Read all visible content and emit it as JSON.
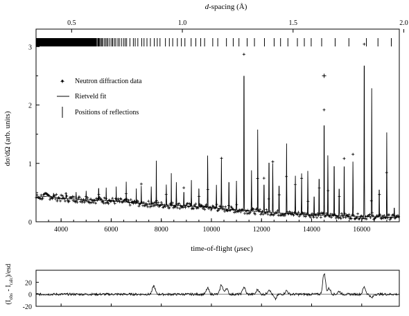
{
  "chart_data": [
    {
      "type": "scatter",
      "title": "",
      "xlabel": "time-of-flight (μsec)",
      "ylabel": "dσ/dΩ (arb. units)",
      "top_axis_label": "d-spacing (Å)",
      "top_axis_ticks": [
        "0.5",
        "1.0",
        "1.5",
        "2.0"
      ],
      "top_axis_tick_tof": [
        4420,
        8840,
        13260,
        17680
      ],
      "xlim": [
        3000,
        17500
      ],
      "ylim": [
        0,
        3.3
      ],
      "x_ticks": [
        "4000",
        "6000",
        "8000",
        "10000",
        "12000",
        "14000",
        "16000"
      ],
      "y_ticks": [
        "0",
        "1",
        "2",
        "3"
      ],
      "legend_position": "upper-left",
      "series": [
        {
          "name": "Neutron diffraction data",
          "style": "points"
        },
        {
          "name": "Rietveld fit",
          "style": "line"
        },
        {
          "name": "Positions of reflections",
          "style": "ticks"
        }
      ],
      "baseline_points": [
        [
          3000,
          0.42
        ],
        [
          3500,
          0.44
        ],
        [
          4000,
          0.4
        ],
        [
          5000,
          0.38
        ],
        [
          6000,
          0.36
        ],
        [
          7000,
          0.32
        ],
        [
          8000,
          0.29
        ],
        [
          9000,
          0.27
        ],
        [
          10000,
          0.24
        ],
        [
          11000,
          0.2
        ],
        [
          12000,
          0.17
        ],
        [
          13000,
          0.14
        ],
        [
          14000,
          0.12
        ],
        [
          15000,
          0.1
        ],
        [
          16000,
          0.09
        ],
        [
          17000,
          0.08
        ],
        [
          17500,
          0.08
        ]
      ],
      "peaks": [
        [
          3700,
          0.08,
          0.05
        ],
        [
          4200,
          0.1,
          0.05
        ],
        [
          4600,
          0.12,
          0.05
        ],
        [
          5000,
          0.15,
          0.05
        ],
        [
          5500,
          0.3,
          0.04
        ],
        [
          5800,
          0.22,
          0.04
        ],
        [
          6200,
          0.25,
          0.04
        ],
        [
          6600,
          0.35,
          0.04
        ],
        [
          7000,
          0.25,
          0.04
        ],
        [
          7200,
          0.3,
          0.04
        ],
        [
          7600,
          0.3,
          0.05
        ],
        [
          7800,
          0.75,
          0.04
        ],
        [
          8200,
          0.35,
          0.05
        ],
        [
          8400,
          0.55,
          0.04
        ],
        [
          8600,
          0.4,
          0.05
        ],
        [
          8900,
          0.3,
          0.05
        ],
        [
          9200,
          0.45,
          0.05
        ],
        [
          9500,
          0.4,
          0.05
        ],
        [
          9850,
          0.95,
          0.05
        ],
        [
          10200,
          0.4,
          0.05
        ],
        [
          10400,
          0.85,
          0.05
        ],
        [
          10700,
          0.6,
          0.05
        ],
        [
          11000,
          0.5,
          0.05
        ],
        [
          11300,
          3.0,
          0.05
        ],
        [
          11600,
          0.7,
          0.05
        ],
        [
          11850,
          1.5,
          0.05
        ],
        [
          12100,
          0.6,
          0.05
        ],
        [
          12300,
          1.1,
          0.05
        ],
        [
          12450,
          0.9,
          0.05
        ],
        [
          12700,
          0.6,
          0.05
        ],
        [
          13000,
          1.2,
          0.05
        ],
        [
          13350,
          0.7,
          0.05
        ],
        [
          13600,
          0.7,
          0.05
        ],
        [
          13850,
          0.8,
          0.05
        ],
        [
          14100,
          0.4,
          0.05
        ],
        [
          14300,
          0.8,
          0.05
        ],
        [
          14500,
          2.0,
          0.05
        ],
        [
          14650,
          1.1,
          0.05
        ],
        [
          14900,
          1.1,
          0.05
        ],
        [
          15100,
          0.6,
          0.05
        ],
        [
          15300,
          1.1,
          0.05
        ],
        [
          15650,
          1.0,
          0.05
        ],
        [
          16100,
          3.1,
          0.06
        ],
        [
          16400,
          2.2,
          0.06
        ],
        [
          16700,
          0.6,
          0.05
        ],
        [
          17000,
          1.45,
          0.05
        ],
        [
          17300,
          0.2,
          0.05
        ]
      ],
      "outlier_points": [
        [
          14500,
          2.5
        ]
      ]
    },
    {
      "type": "line",
      "title": "",
      "xlabel": "",
      "ylabel": "(Iobs-Icalc)/esd",
      "xlim": [
        3000,
        17500
      ],
      "ylim": [
        -20,
        40
      ],
      "y_ticks": [
        "20",
        "0",
        "-20"
      ],
      "features": [
        [
          7700,
          14
        ],
        [
          9850,
          10
        ],
        [
          10400,
          16
        ],
        [
          10600,
          10
        ],
        [
          11300,
          12
        ],
        [
          11850,
          8
        ],
        [
          12300,
          8
        ],
        [
          12550,
          -8
        ],
        [
          13000,
          6
        ],
        [
          14500,
          35
        ],
        [
          14700,
          10
        ],
        [
          15100,
          5
        ],
        [
          16100,
          12
        ],
        [
          16400,
          -6
        ]
      ]
    }
  ],
  "labels": {
    "top_axis": "d-spacing (Å)",
    "x_axis": "time-of-flight (μsec)",
    "y_axis_main": "dσ/dΩ (arb. units)",
    "y_axis_resid": "(I_obs - I_calc)/esd",
    "legend_data": "Neutron diffraction data",
    "legend_fit": "Rietveld fit",
    "legend_ticks": "Positions of reflections"
  }
}
